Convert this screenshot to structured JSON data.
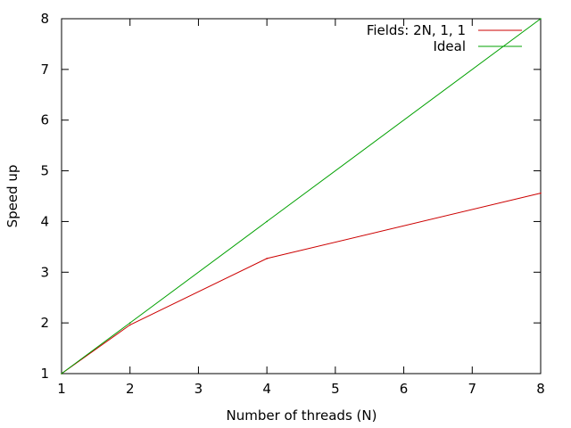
{
  "chart_data": {
    "type": "line",
    "title": "",
    "xlabel": "Number of threads (N)",
    "ylabel": "Speed up",
    "xlim": [
      1,
      8
    ],
    "ylim": [
      1,
      8
    ],
    "xticks": [
      1,
      2,
      3,
      4,
      5,
      6,
      7,
      8
    ],
    "yticks": [
      1,
      2,
      3,
      4,
      5,
      6,
      7,
      8
    ],
    "grid": false,
    "legend_position": "top-right",
    "series": [
      {
        "name": "Fields: 2N, 1, 1",
        "color": "#cc0000",
        "x": [
          1,
          2,
          4,
          8
        ],
        "y": [
          1,
          1.96,
          3.27,
          4.56
        ]
      },
      {
        "name": "Ideal",
        "color": "#00a000",
        "x": [
          1,
          2,
          4,
          8
        ],
        "y": [
          1,
          2,
          4,
          8
        ]
      }
    ]
  }
}
